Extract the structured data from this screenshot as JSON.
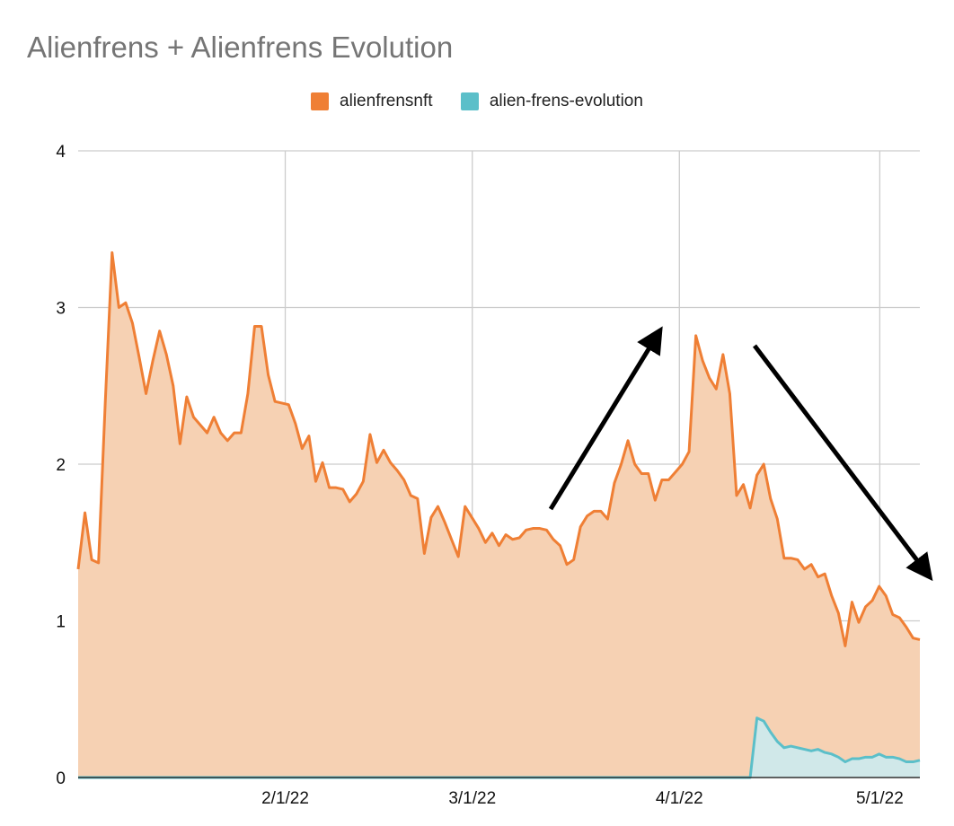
{
  "chart_data": {
    "type": "area",
    "title": "Alienfrens + Alienfrens Evolution",
    "xlabel": "",
    "ylabel": "",
    "ylim": [
      0,
      4
    ],
    "y_ticks": [
      "0",
      "1",
      "2",
      "3",
      "4"
    ],
    "x_ticks": [
      "2/1/22",
      "3/1/22",
      "4/1/22",
      "5/1/22"
    ],
    "grid": true,
    "legend_position": "top",
    "series": [
      {
        "name": "alienfrensnft",
        "color": "#ef7f35",
        "fill": "#f6d1b3",
        "values": [
          1.33,
          1.69,
          1.39,
          1.37,
          2.4,
          3.35,
          3.0,
          3.03,
          2.9,
          2.68,
          2.45,
          2.66,
          2.85,
          2.7,
          2.5,
          2.13,
          2.43,
          2.3,
          2.25,
          2.2,
          2.3,
          2.2,
          2.15,
          2.2,
          2.2,
          2.45,
          2.88,
          2.88,
          2.57,
          2.4,
          2.39,
          2.38,
          2.26,
          2.1,
          2.18,
          1.89,
          2.01,
          1.85,
          1.85,
          1.84,
          1.76,
          1.81,
          1.89,
          2.19,
          2.01,
          2.09,
          2.01,
          1.96,
          1.9,
          1.8,
          1.78,
          1.43,
          1.66,
          1.73,
          1.63,
          1.52,
          1.41,
          1.73,
          1.66,
          1.59,
          1.5,
          1.56,
          1.48,
          1.55,
          1.52,
          1.53,
          1.58,
          1.59,
          1.59,
          1.58,
          1.52,
          1.48,
          1.36,
          1.39,
          1.6,
          1.67,
          1.7,
          1.7,
          1.65,
          1.88,
          2.0,
          2.15,
          2.0,
          1.94,
          1.94,
          1.77,
          1.9,
          1.9,
          1.95,
          2.0,
          2.08,
          2.82,
          2.66,
          2.55,
          2.48,
          2.7,
          2.45,
          1.8,
          1.87,
          1.72,
          1.93,
          2.0,
          1.78,
          1.65,
          1.4,
          1.4,
          1.39,
          1.33,
          1.36,
          1.28,
          1.3,
          1.16,
          1.05,
          0.84,
          1.12,
          0.99,
          1.09,
          1.13,
          1.22,
          1.16,
          1.04,
          1.02,
          0.96,
          0.89,
          0.88
        ]
      },
      {
        "name": "alien-frens-evolution",
        "color": "#5bbfc9",
        "fill": "#cde9ec",
        "values": [
          0,
          0,
          0,
          0,
          0,
          0,
          0,
          0,
          0,
          0,
          0,
          0,
          0,
          0,
          0,
          0,
          0,
          0,
          0,
          0,
          0,
          0,
          0,
          0,
          0,
          0,
          0,
          0,
          0,
          0,
          0,
          0,
          0,
          0,
          0,
          0,
          0,
          0,
          0,
          0,
          0,
          0,
          0,
          0,
          0,
          0,
          0,
          0,
          0,
          0,
          0,
          0,
          0,
          0,
          0,
          0,
          0,
          0,
          0,
          0,
          0,
          0,
          0,
          0,
          0,
          0,
          0,
          0,
          0,
          0,
          0,
          0,
          0,
          0,
          0,
          0,
          0,
          0,
          0,
          0,
          0,
          0,
          0,
          0,
          0,
          0,
          0,
          0,
          0,
          0,
          0,
          0,
          0,
          0,
          0,
          0,
          0,
          0,
          0,
          0,
          0.38,
          0.36,
          0.29,
          0.23,
          0.19,
          0.2,
          0.19,
          0.18,
          0.17,
          0.18,
          0.16,
          0.15,
          0.13,
          0.1,
          0.12,
          0.12,
          0.13,
          0.13,
          0.15,
          0.13,
          0.13,
          0.12,
          0.1,
          0.1,
          0.11
        ]
      }
    ]
  }
}
